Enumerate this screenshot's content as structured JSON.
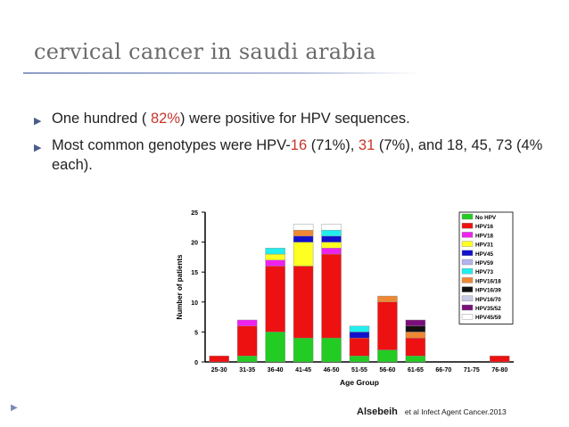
{
  "slide": {
    "title": "cervical cancer in saudi arabia",
    "bullet1": {
      "p1": "One hundred ( ",
      "p2": "82%",
      "p3": ") were positive for HPV sequences."
    },
    "bullet2": {
      "p1": " Most common genotypes were HPV-",
      "p2": "16",
      "p3": " (71%), ",
      "p4": "31",
      "p5": " (7%), and 18, 45, 73 (4% each)."
    },
    "citation": {
      "author": "Alsebeih",
      "rest": "et al Infect Agent Cancer.2013"
    },
    "bullet_icon": "triangle-right-icon",
    "marker_icon": "triangle-right-icon",
    "colors": {
      "accent_red": "#c8352b",
      "rule": "#8c9cc6"
    }
  },
  "chart_data": {
    "type": "bar",
    "stacked": true,
    "xlabel": "Age Group",
    "ylabel": "Number of patients",
    "ylim": [
      0,
      25
    ],
    "yticks": [
      0,
      5,
      10,
      15,
      20,
      25
    ],
    "categories": [
      "25-30",
      "31-35",
      "36-40",
      "41-45",
      "46-50",
      "51-55",
      "56-60",
      "61-65",
      "66-70",
      "71-75",
      "76-80"
    ],
    "legend_position": "top-right",
    "series": [
      {
        "name": "No HPV",
        "color": "#22cc22",
        "values": [
          0,
          1,
          5,
          4,
          4,
          1,
          2,
          1,
          0,
          0,
          0
        ]
      },
      {
        "name": "HPV16",
        "color": "#ee1111",
        "values": [
          1,
          5,
          11,
          12,
          14,
          3,
          8,
          3,
          0,
          0,
          1
        ]
      },
      {
        "name": "HPV18",
        "color": "#ee22ee",
        "values": [
          0,
          1,
          1,
          0,
          1,
          0,
          0,
          0,
          0,
          0,
          0
        ]
      },
      {
        "name": "HPV31",
        "color": "#ffff22",
        "values": [
          0,
          0,
          1,
          4,
          1,
          0,
          0,
          0,
          0,
          0,
          0
        ]
      },
      {
        "name": "HPV45",
        "color": "#1111cc",
        "values": [
          0,
          0,
          0,
          1,
          1,
          1,
          0,
          0,
          0,
          0,
          0
        ]
      },
      {
        "name": "HPV59",
        "color": "#b3b3ee",
        "values": [
          0,
          0,
          0,
          0,
          0,
          0,
          0,
          0,
          0,
          0,
          0
        ]
      },
      {
        "name": "HPV73",
        "color": "#22eeee",
        "values": [
          0,
          0,
          1,
          0,
          1,
          1,
          0,
          0,
          0,
          0,
          0
        ]
      },
      {
        "name": "HPV16/18",
        "color": "#ee8833",
        "values": [
          0,
          0,
          0,
          1,
          0,
          0,
          1,
          1,
          0,
          0,
          0
        ]
      },
      {
        "name": "HPV16/39",
        "color": "#111111",
        "values": [
          0,
          0,
          0,
          0,
          0,
          0,
          0,
          1,
          0,
          0,
          0
        ]
      },
      {
        "name": "HPV16/70",
        "color": "#c9c9e8",
        "values": [
          0,
          0,
          0,
          0,
          0,
          0,
          0,
          0,
          0,
          0,
          0
        ]
      },
      {
        "name": "HPV35/52",
        "color": "#7a0f7a",
        "values": [
          0,
          0,
          0,
          0,
          0,
          0,
          0,
          1,
          0,
          0,
          0
        ]
      },
      {
        "name": "HPV45/59",
        "color": "#ffffff",
        "values": [
          0,
          0,
          0,
          1,
          1,
          0,
          0,
          0,
          0,
          0,
          0
        ]
      }
    ]
  }
}
